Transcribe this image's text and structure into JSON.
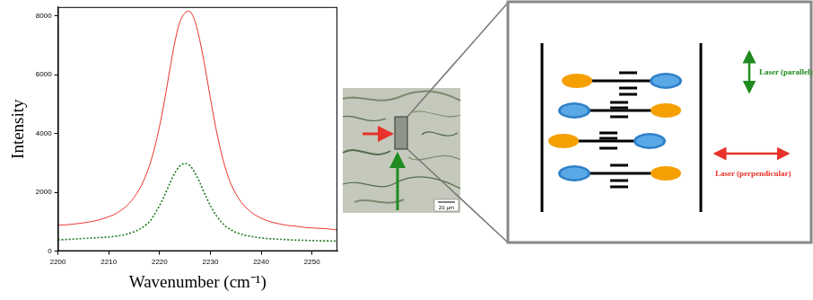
{
  "chart_data": {
    "type": "line",
    "x_label": "Wavenumber (cm⁻¹)",
    "y_label": "Intensity",
    "x": [
      2200,
      2201,
      2202,
      2203,
      2204,
      2205,
      2206,
      2207,
      2208,
      2209,
      2210,
      2211,
      2212,
      2213,
      2214,
      2215,
      2216,
      2217,
      2218,
      2219,
      2220,
      2221,
      2222,
      2223,
      2224,
      2225,
      2226,
      2227,
      2228,
      2229,
      2230,
      2231,
      2232,
      2233,
      2234,
      2235,
      2236,
      2237,
      2238,
      2239,
      2240,
      2241,
      2242,
      2243,
      2244,
      2245,
      2246,
      2247,
      2248,
      2249,
      2250,
      2251,
      2252,
      2253,
      2254,
      2255
    ],
    "series": [
      {
        "color": "#e8322a",
        "line_style": "solid",
        "values": [
          880,
          890,
          900,
          920,
          940,
          960,
          990,
          1020,
          1060,
          1110,
          1170,
          1240,
          1340,
          1460,
          1620,
          1830,
          2100,
          2450,
          2900,
          3500,
          4250,
          5150,
          6150,
          7100,
          7800,
          8100,
          8150,
          7800,
          7100,
          6200,
          5200,
          4250,
          3450,
          2800,
          2300,
          1950,
          1680,
          1480,
          1330,
          1210,
          1120,
          1050,
          990,
          950,
          910,
          880,
          860,
          840,
          820,
          800,
          790,
          780,
          770,
          760,
          740,
          720
        ]
      },
      {
        "color": "#1f7a1f",
        "line_style": "dotted",
        "values": [
          380,
          390,
          400,
          410,
          420,
          430,
          440,
          450,
          460,
          470,
          480,
          500,
          520,
          550,
          600,
          660,
          740,
          850,
          1000,
          1250,
          1550,
          1900,
          2300,
          2650,
          2900,
          2980,
          2900,
          2650,
          2300,
          1900,
          1550,
          1250,
          1020,
          850,
          730,
          640,
          580,
          530,
          500,
          470,
          450,
          430,
          420,
          410,
          400,
          390,
          380,
          375,
          370,
          365,
          360,
          355,
          350,
          350,
          345,
          340
        ]
      }
    ],
    "xlim": [
      2200,
      2255
    ],
    "xticks": [
      2200,
      2210,
      2220,
      2230,
      2240,
      2250
    ],
    "ylim": [
      0,
      8300
    ],
    "yticks": [
      0,
      2000,
      4000,
      6000,
      8000
    ],
    "grid": false
  },
  "micrograph": {
    "scale_bar": "20 μm"
  },
  "schematic": {
    "arrows": [
      {
        "label": "Laser (parallel)",
        "color": "#1f8a1f"
      },
      {
        "label": "Laser (perpendicular)",
        "color": "#e8322a"
      }
    ]
  }
}
